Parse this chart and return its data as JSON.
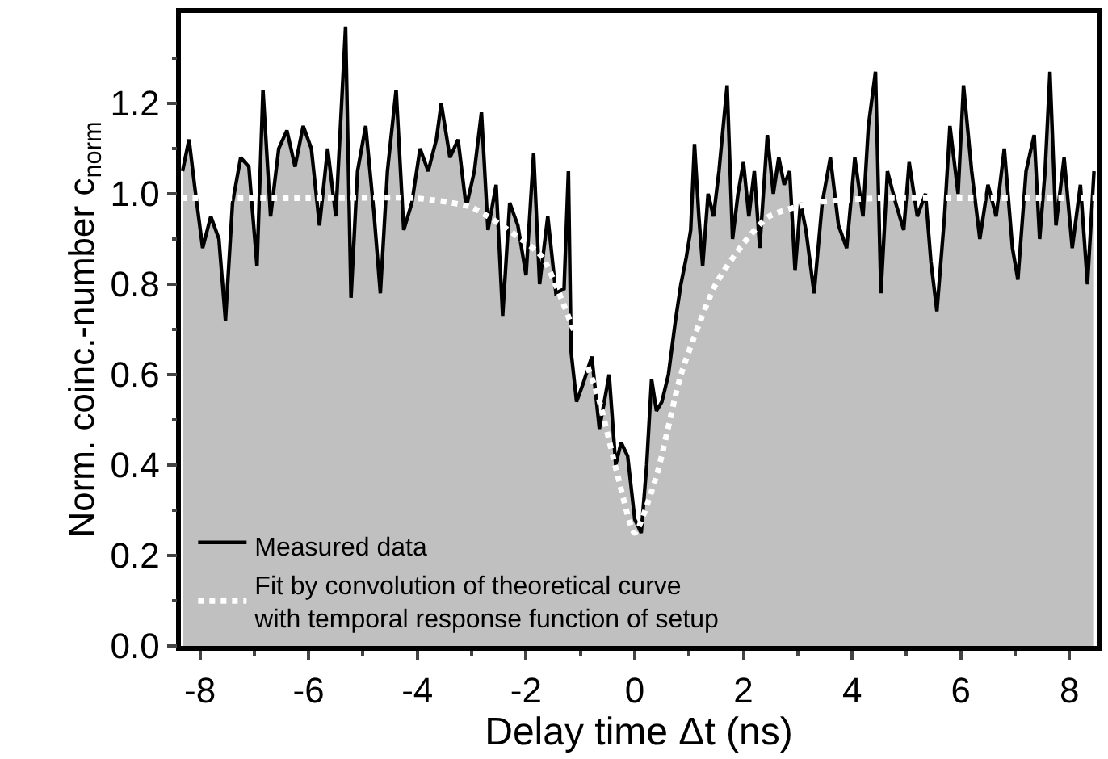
{
  "chart_data": {
    "type": "area",
    "xlabel": "Delay time Δt (ns)",
    "ylabel": "Norm. coinc.-number c$_{norm}$",
    "xlim": [
      -8.35,
      8.5
    ],
    "ylim": [
      0,
      1.4
    ],
    "xticks": [
      -8,
      -6,
      -4,
      -2,
      0,
      2,
      4,
      6,
      8
    ],
    "yticks": [
      {
        "value": 0,
        "label": "0.0"
      },
      {
        "value": 0.2,
        "label": "0.2"
      },
      {
        "value": 0.4,
        "label": "0.4"
      },
      {
        "value": 0.6,
        "label": "0.6"
      },
      {
        "value": 0.8,
        "label": "0.8"
      },
      {
        "value": 1.0,
        "label": "1.0"
      },
      {
        "value": 1.2,
        "label": "1.2"
      }
    ],
    "legend": "bottom left",
    "marker": "none",
    "series": [
      {
        "name": "Measured data",
        "color": "#000000",
        "line_style": "solid",
        "x": [
          -8.32,
          -8.2,
          -8.1,
          -7.95,
          -7.8,
          -7.65,
          -7.53,
          -7.4,
          -7.25,
          -7.1,
          -6.95,
          -6.84,
          -6.7,
          -6.55,
          -6.4,
          -6.25,
          -6.1,
          -5.95,
          -5.8,
          -5.65,
          -5.5,
          -5.32,
          -5.22,
          -5.1,
          -4.95,
          -4.8,
          -4.68,
          -4.55,
          -4.39,
          -4.25,
          -4.1,
          -3.95,
          -3.8,
          -3.65,
          -3.56,
          -3.4,
          -3.25,
          -3.1,
          -2.95,
          -2.82,
          -2.7,
          -2.55,
          -2.43,
          -2.3,
          -2.15,
          -2.0,
          -1.86,
          -1.75,
          -1.6,
          -1.45,
          -1.3,
          -1.22,
          -1.17,
          -1.07,
          -0.95,
          -0.79,
          -0.65,
          -0.47,
          -0.35,
          -0.25,
          -0.13,
          0.0,
          0.12,
          0.22,
          0.31,
          0.4,
          0.5,
          0.62,
          0.75,
          0.85,
          0.95,
          1.03,
          1.1,
          1.18,
          1.25,
          1.35,
          1.45,
          1.55,
          1.7,
          1.8,
          1.9,
          2.0,
          2.1,
          2.2,
          2.3,
          2.44,
          2.55,
          2.65,
          2.75,
          2.85,
          2.95,
          3.05,
          3.15,
          3.3,
          3.45,
          3.6,
          3.75,
          3.9,
          4.05,
          4.2,
          4.3,
          4.43,
          4.53,
          4.65,
          4.8,
          4.95,
          5.05,
          5.2,
          5.35,
          5.45,
          5.56,
          5.7,
          5.8,
          5.95,
          6.05,
          6.2,
          6.35,
          6.5,
          6.65,
          6.8,
          6.95,
          7.05,
          7.2,
          7.35,
          7.45,
          7.55,
          7.64,
          7.75,
          7.9,
          8.05,
          8.2,
          8.33,
          8.45
        ],
        "values": [
          1.05,
          1.12,
          1.02,
          0.88,
          0.95,
          0.9,
          0.72,
          0.98,
          1.08,
          1.06,
          0.84,
          1.23,
          0.95,
          1.1,
          1.14,
          1.06,
          1.15,
          1.1,
          0.93,
          1.1,
          0.95,
          1.37,
          0.77,
          1.05,
          1.15,
          0.96,
          0.78,
          1.05,
          1.23,
          0.92,
          0.98,
          1.1,
          1.05,
          1.12,
          1.2,
          1.08,
          1.12,
          0.97,
          1.05,
          1.18,
          0.92,
          1.02,
          0.73,
          0.98,
          0.93,
          0.82,
          1.09,
          0.8,
          0.95,
          0.78,
          0.79,
          1.05,
          0.65,
          0.54,
          0.58,
          0.64,
          0.48,
          0.6,
          0.4,
          0.45,
          0.42,
          0.28,
          0.25,
          0.4,
          0.59,
          0.52,
          0.54,
          0.6,
          0.72,
          0.8,
          0.86,
          0.92,
          1.11,
          0.95,
          0.84,
          1.0,
          0.95,
          1.05,
          1.24,
          0.9,
          1.0,
          1.07,
          0.95,
          1.05,
          0.88,
          1.13,
          1.0,
          1.08,
          1.02,
          1.05,
          0.83,
          0.98,
          0.92,
          0.78,
          0.98,
          1.08,
          0.93,
          0.88,
          1.08,
          0.95,
          1.15,
          1.27,
          0.78,
          1.05,
          0.98,
          0.92,
          1.07,
          0.95,
          1.0,
          0.85,
          0.74,
          0.95,
          1.15,
          1.0,
          1.24,
          1.05,
          0.9,
          1.02,
          0.95,
          1.1,
          0.88,
          0.81,
          1.05,
          1.13,
          0.9,
          1.05,
          1.27,
          0.93,
          1.08,
          0.88,
          1.02,
          0.8,
          1.05
        ]
      },
      {
        "name": "Fit by convolution of theoretical curve\nwith temporal response function of setup",
        "type": "line",
        "color": "#ffffff",
        "line_style": "dotted",
        "x": [
          -8.35,
          -6,
          -4,
          -3,
          -2.15,
          -1.7,
          -1.16,
          -0.67,
          -0.32,
          0,
          0.41,
          0.85,
          1.49,
          2.0,
          2.47,
          3.3,
          4.43,
          6,
          8.5
        ],
        "values": [
          0.99,
          0.99,
          0.99,
          0.97,
          0.905,
          0.86,
          0.71,
          0.55,
          0.38,
          0.25,
          0.38,
          0.6,
          0.8,
          0.89,
          0.95,
          0.98,
          0.99,
          0.99,
          0.99
        ]
      }
    ]
  }
}
